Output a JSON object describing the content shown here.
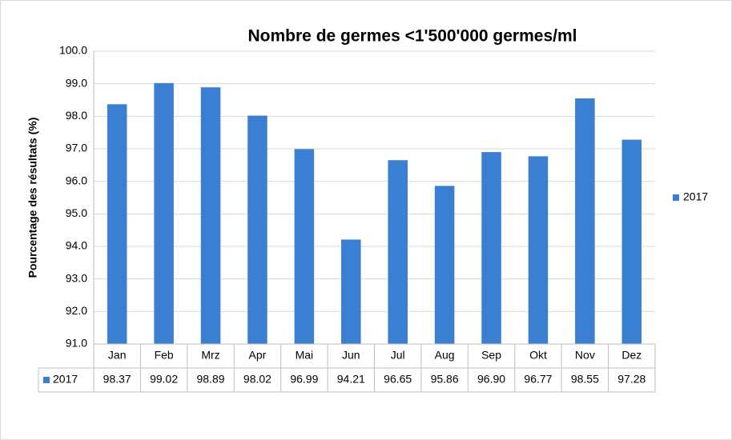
{
  "chart_data": {
    "type": "bar",
    "title": "Nombre de germes <1'500'000 germes/ml",
    "y_label": "Pourcentage des résultats (%)",
    "categories": [
      "Jan",
      "Feb",
      "Mrz",
      "Apr",
      "Mai",
      "Jun",
      "Jul",
      "Aug",
      "Sep",
      "Okt",
      "Nov",
      "Dez"
    ],
    "series": [
      {
        "name": "2017",
        "color": "#3b7fd3",
        "values": [
          98.37,
          99.02,
          98.89,
          98.02,
          96.99,
          94.21,
          96.65,
          95.86,
          96.9,
          96.77,
          98.55,
          97.28
        ],
        "value_labels": [
          "98.37",
          "99.02",
          "98.89",
          "98.02",
          "96.99",
          "94.21",
          "96.65",
          "95.86",
          "96.90",
          "96.77",
          "98.55",
          "97.28"
        ]
      }
    ],
    "ylim": [
      91,
      100
    ],
    "yticks": [
      {
        "value": 91,
        "label": "91.0"
      },
      {
        "value": 92,
        "label": "92.0"
      },
      {
        "value": 93,
        "label": "93.0"
      },
      {
        "value": 94,
        "label": "94.0"
      },
      {
        "value": 95,
        "label": "95.0"
      },
      {
        "value": 96,
        "label": "96.0"
      },
      {
        "value": 97,
        "label": "97.0"
      },
      {
        "value": 98,
        "label": "98.0"
      },
      {
        "value": 99,
        "label": "99.0"
      },
      {
        "value": 100,
        "label": "100.0"
      }
    ],
    "grid": true,
    "legend": "right",
    "data_table": true
  }
}
